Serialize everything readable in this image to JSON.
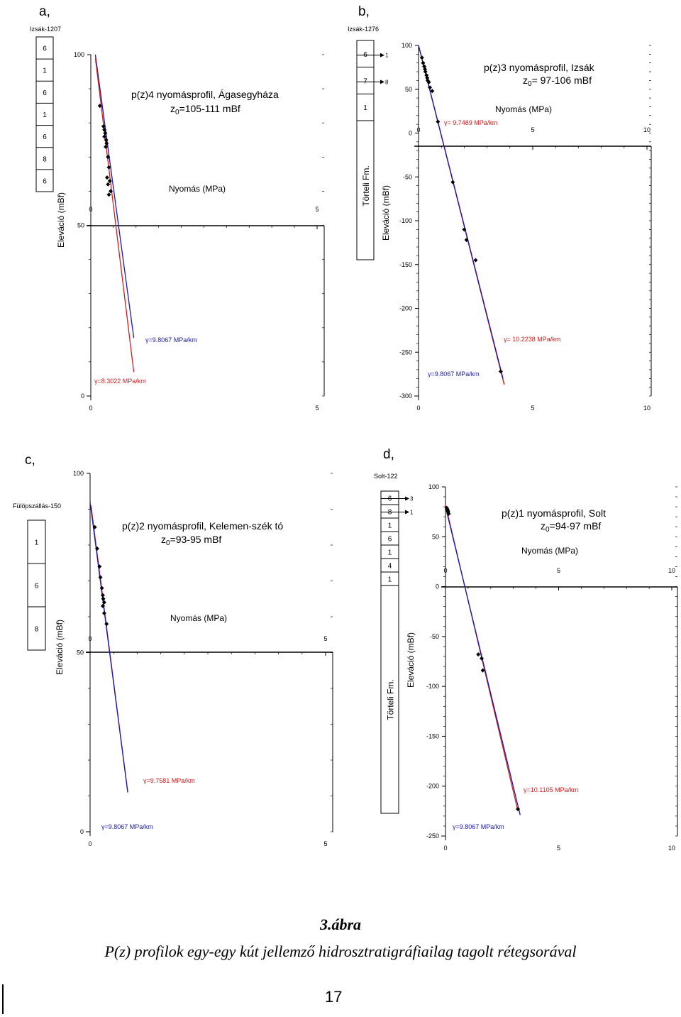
{
  "chart_data": [
    {
      "type": "line",
      "panel_label": "a,",
      "well": {
        "name": "Izsák-1207",
        "layers": [
          "6",
          "1",
          "6",
          "1",
          "6",
          "8",
          "6"
        ]
      },
      "title": "p(z)4 nyomásprofil, Ágasegyháza",
      "subtitle_prefix": "z",
      "subtitle_sub": "0",
      "subtitle_rest": "=105-111 mBf",
      "xlabel": "Nyomás (MPa)",
      "ylabel": "Eleváció (mBf)",
      "xlim": [
        0,
        5
      ],
      "ylim": [
        0,
        100
      ],
      "x_ticks": [
        "0",
        "5"
      ],
      "y_ticks": [
        "100",
        "50",
        "0"
      ],
      "series": [
        {
          "name": "γ=9.8067 MPa/km",
          "color": "#1a1aaa",
          "x": [
            0.1,
            0.95
          ],
          "y": [
            100,
            17
          ]
        },
        {
          "name": "γ=8.3022 MPa/km",
          "color": "#cc1f1f",
          "x": [
            0.1,
            0.95
          ],
          "y": [
            99,
            7
          ]
        }
      ],
      "points": {
        "x": [
          0.2,
          0.28,
          0.3,
          0.32,
          0.3,
          0.34,
          0.35,
          0.33,
          0.38,
          0.4,
          0.36,
          0.42,
          0.38,
          0.44,
          0.4
        ],
        "y": [
          85,
          79,
          78,
          77,
          76,
          75,
          74,
          73,
          70,
          67,
          64,
          63,
          62,
          60,
          59
        ]
      }
    },
    {
      "type": "line",
      "panel_label": "b,",
      "well": {
        "name": "Izsák-1276",
        "layers": [
          "6",
          "7",
          "1"
        ],
        "arrows": [
          "1",
          "8"
        ],
        "formation": "Törteli Fm."
      },
      "title": "p(z)3 nyomásprofil, Izsák",
      "subtitle_prefix": "z",
      "subtitle_sub": "0",
      "subtitle_rest": "= 97-106 mBf",
      "xlabel": "Nyomás (MPa)",
      "ylabel": "Eleváció (mBf)",
      "xlim": [
        0,
        10
      ],
      "ylim": [
        -300,
        100
      ],
      "x_ticks": [
        "0",
        "5",
        "10"
      ],
      "y_ticks": [
        "100",
        "50",
        "0",
        "-50",
        "-100",
        "-150",
        "-200",
        "-250",
        "-300"
      ],
      "series": [
        {
          "name": "γ= 9.7489 MPa/km",
          "color": "#cc1f1f",
          "x": [
            0.0,
            3.75
          ],
          "y": [
            100,
            -287
          ]
        },
        {
          "name": "γ= 10.2238 MPa/km",
          "color": "#cc1f1f",
          "x": [
            0.0,
            3.75
          ],
          "y": [
            100,
            -287
          ]
        },
        {
          "name": "γ=9.8067 MPa/km",
          "color": "#1a1aaa",
          "x": [
            0.0,
            3.7
          ],
          "y": [
            100,
            -280
          ]
        }
      ],
      "points": {
        "x": [
          0.15,
          0.2,
          0.25,
          0.28,
          0.3,
          0.35,
          0.38,
          0.4,
          0.45,
          0.5,
          0.6,
          0.85,
          1.5,
          2.0,
          2.1,
          2.5,
          3.6
        ],
        "y": [
          86,
          80,
          76,
          73,
          70,
          66,
          63,
          60,
          58,
          52,
          48,
          13,
          -56,
          -110,
          -122,
          -145,
          -272
        ]
      }
    },
    {
      "type": "line",
      "panel_label": "c,",
      "well": {
        "name": "Fülöpszállás-150",
        "layers": [
          "1",
          "6",
          "8"
        ]
      },
      "title": "p(z)2 nyomásprofil, Kelemen-szék tó",
      "subtitle_prefix": "z",
      "subtitle_sub": "0",
      "subtitle_rest": "=93-95 mBf",
      "xlabel": "Nyomás (MPa)",
      "ylabel": "Eleváció (mBf)",
      "xlim": [
        0,
        5
      ],
      "ylim": [
        0,
        100
      ],
      "x_ticks": [
        "0",
        "5"
      ],
      "y_ticks": [
        "100",
        "50",
        "0"
      ],
      "series": [
        {
          "name": "γ=9.7581 MPa/km",
          "color": "#cc1f1f",
          "x": [
            0.02,
            0.8
          ],
          "y": [
            91,
            11
          ]
        },
        {
          "name": "γ=9.8067 MPa/km",
          "color": "#1a1aaa",
          "x": [
            0.0,
            0.8
          ],
          "y": [
            92,
            11
          ]
        }
      ],
      "points": {
        "x": [
          0.1,
          0.15,
          0.2,
          0.22,
          0.25,
          0.27,
          0.28,
          0.3,
          0.27,
          0.3,
          0.35
        ],
        "y": [
          85,
          79,
          74,
          71,
          68,
          66,
          65,
          64,
          63,
          61,
          58
        ]
      }
    },
    {
      "type": "line",
      "panel_label": "d,",
      "well": {
        "name": "Solt-122",
        "layers": [
          "6",
          "8",
          "1",
          "6",
          "1",
          "4",
          "1"
        ],
        "arrows": [
          "3",
          "1"
        ],
        "formation": "Törteli Fm."
      },
      "title": "p(z)1 nyomásprofil, Solt",
      "subtitle_prefix": "z",
      "subtitle_sub": "0",
      "subtitle_rest": "=94-97 mBf",
      "xlabel": "Nyomás (MPa)",
      "ylabel": "Eleváció (mBf)",
      "xlim": [
        0,
        10
      ],
      "ylim": [
        -250,
        100
      ],
      "x_ticks": [
        "0",
        "5",
        "10"
      ],
      "y_ticks": [
        "100",
        "50",
        "0",
        "-50",
        "-100",
        "-150",
        "-200",
        "-250"
      ],
      "series": [
        {
          "name": "γ=10.1105 MPa/km",
          "color": "#cc1f1f",
          "x": [
            0.0,
            3.2
          ],
          "y": [
            82,
            -225
          ]
        },
        {
          "name": "γ=9.8067 MPa/km",
          "color": "#1a1aaa",
          "x": [
            0.0,
            3.3
          ],
          "y": [
            80,
            -229
          ]
        }
      ],
      "points": {
        "x": [
          0.05,
          0.07,
          0.09,
          0.1,
          0.12,
          0.14,
          1.45,
          1.6,
          1.65,
          3.2
        ],
        "y": [
          79,
          78,
          77,
          76,
          75,
          73,
          -68,
          -72,
          -84,
          -223
        ]
      }
    }
  ],
  "caption": {
    "title": "3.ábra",
    "text": "P(z) profilok egy-egy kút jellemző hidrosztratigráfiailag tagolt rétegsorával"
  },
  "page_number": "17"
}
